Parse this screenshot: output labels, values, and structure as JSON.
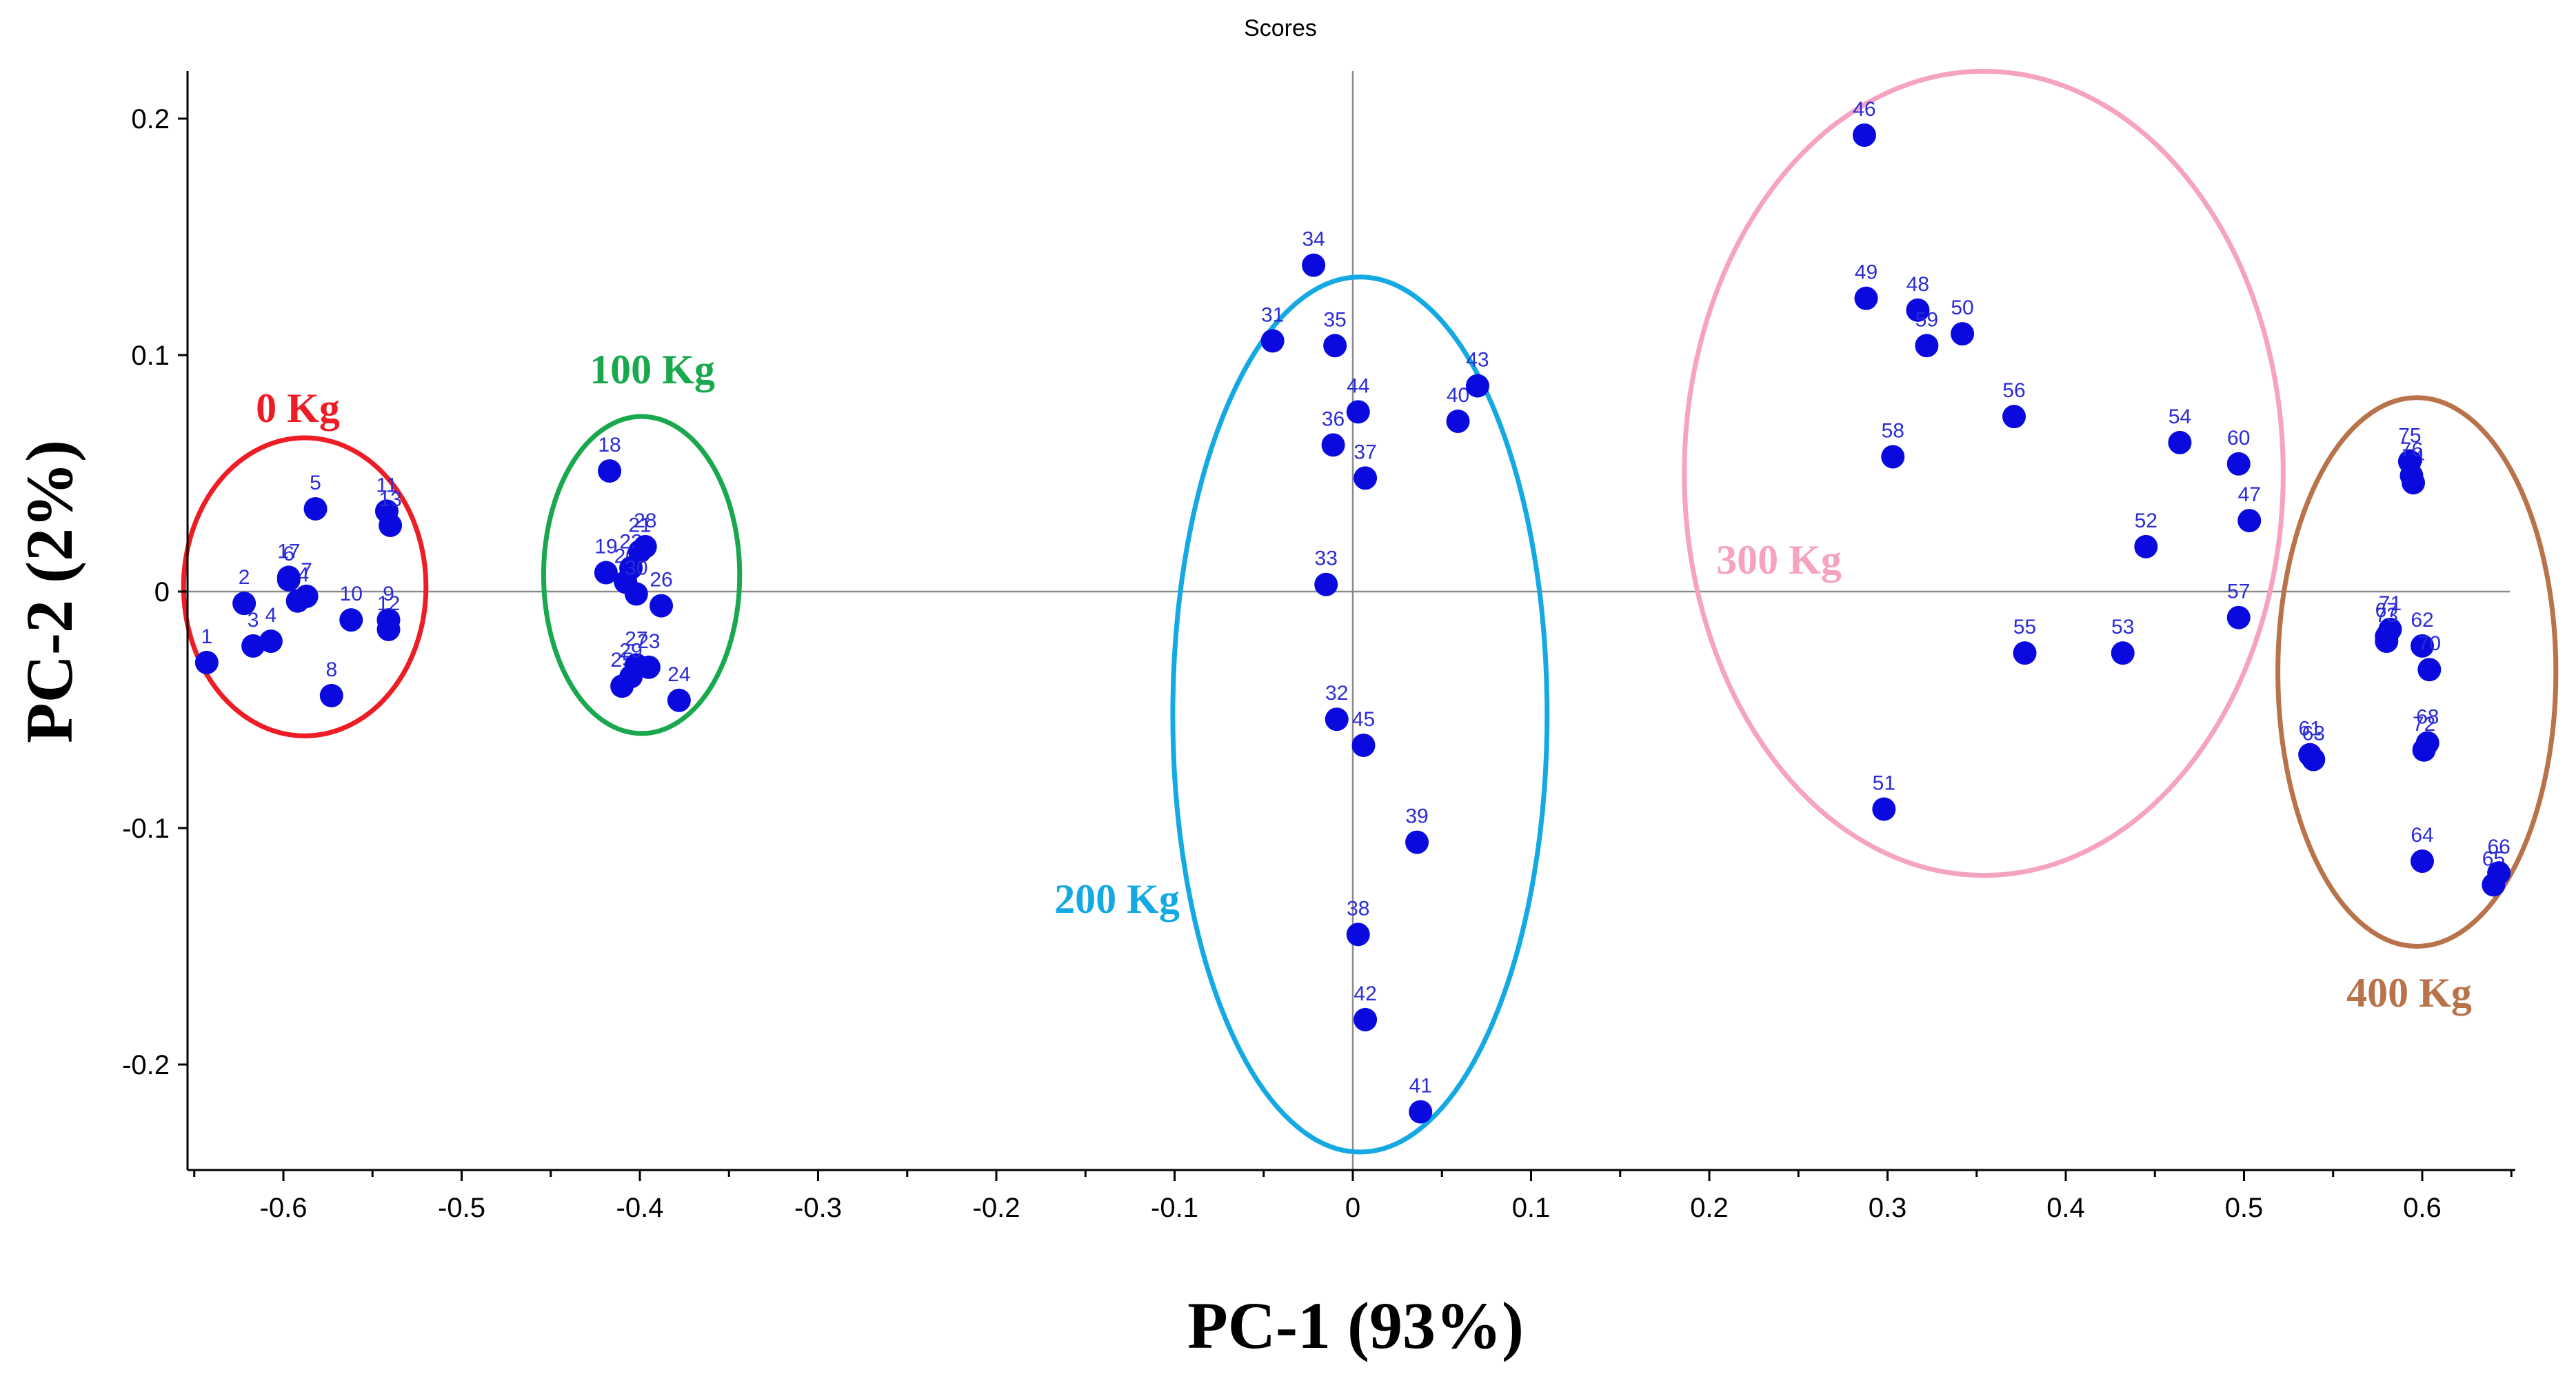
{
  "chart_data": {
    "type": "scatter",
    "title": "Scores",
    "xlabel": "PC-1 (93%)",
    "ylabel": "PC-2 (2%)",
    "xlim": [
      -0.65,
      0.65
    ],
    "ylim": [
      -0.24,
      0.22
    ],
    "xticks": [
      -0.6,
      -0.5,
      -0.4,
      -0.3,
      -0.2,
      -0.1,
      0,
      0.1,
      0.2,
      0.3,
      0.4,
      0.5,
      0.6
    ],
    "xtick_labels": [
      "-0.6",
      "-0.5",
      "-0.4",
      "-0.3",
      "-0.2",
      "-0.1",
      "0",
      "0.1",
      "0.2",
      "0.3",
      "0.4",
      "0.5",
      "0.6"
    ],
    "yticks": [
      0.2,
      0.1,
      0,
      -0.1,
      -0.2
    ],
    "ytick_labels": [
      "0.2",
      "0.1",
      "0",
      "-0.1",
      "-0.2"
    ],
    "grid": false,
    "marker_color": "#0a0adf",
    "label_color": "#2b2bd9",
    "points": [
      {
        "label": "1",
        "x": -0.643,
        "y": -0.03
      },
      {
        "label": "2",
        "x": -0.622,
        "y": -0.005
      },
      {
        "label": "3",
        "x": -0.617,
        "y": -0.023
      },
      {
        "label": "4",
        "x": -0.607,
        "y": -0.021
      },
      {
        "label": "5",
        "x": -0.582,
        "y": 0.035
      },
      {
        "label": "6",
        "x": -0.597,
        "y": 0.005
      },
      {
        "label": "7",
        "x": -0.587,
        "y": -0.002
      },
      {
        "label": "8",
        "x": -0.573,
        "y": -0.044
      },
      {
        "label": "9",
        "x": -0.541,
        "y": -0.012
      },
      {
        "label": "10",
        "x": -0.562,
        "y": -0.012
      },
      {
        "label": "11",
        "x": -0.542,
        "y": 0.034
      },
      {
        "label": "12",
        "x": -0.541,
        "y": -0.016
      },
      {
        "label": "13",
        "x": -0.54,
        "y": 0.028
      },
      {
        "label": "14",
        "x": -0.592,
        "y": -0.004
      },
      {
        "label": "17",
        "x": -0.597,
        "y": 0.006
      },
      {
        "label": "18",
        "x": -0.417,
        "y": 0.051
      },
      {
        "label": "19",
        "x": -0.419,
        "y": 0.008
      },
      {
        "label": "20",
        "x": -0.408,
        "y": 0.004
      },
      {
        "label": "21",
        "x": -0.4,
        "y": 0.017
      },
      {
        "label": "22",
        "x": -0.405,
        "y": 0.01
      },
      {
        "label": "23",
        "x": -0.395,
        "y": -0.032
      },
      {
        "label": "24",
        "x": -0.378,
        "y": -0.046
      },
      {
        "label": "25",
        "x": -0.41,
        "y": -0.04
      },
      {
        "label": "26",
        "x": -0.388,
        "y": -0.006
      },
      {
        "label": "27",
        "x": -0.402,
        "y": -0.031
      },
      {
        "label": "28",
        "x": -0.397,
        "y": 0.019
      },
      {
        "label": "29",
        "x": -0.405,
        "y": -0.036
      },
      {
        "label": "30",
        "x": -0.402,
        "y": -0.001
      },
      {
        "label": "31",
        "x": -0.045,
        "y": 0.106
      },
      {
        "label": "32",
        "x": -0.009,
        "y": -0.054
      },
      {
        "label": "33",
        "x": -0.015,
        "y": 0.003
      },
      {
        "label": "34",
        "x": -0.022,
        "y": 0.138
      },
      {
        "label": "35",
        "x": -0.01,
        "y": 0.104
      },
      {
        "label": "36",
        "x": -0.011,
        "y": 0.062
      },
      {
        "label": "37",
        "x": 0.007,
        "y": 0.048
      },
      {
        "label": "38",
        "x": 0.003,
        "y": -0.145
      },
      {
        "label": "39",
        "x": 0.036,
        "y": -0.106
      },
      {
        "label": "40",
        "x": 0.059,
        "y": 0.072
      },
      {
        "label": "41",
        "x": 0.038,
        "y": -0.22
      },
      {
        "label": "42",
        "x": 0.007,
        "y": -0.181
      },
      {
        "label": "43",
        "x": 0.07,
        "y": 0.087
      },
      {
        "label": "44",
        "x": 0.003,
        "y": 0.076
      },
      {
        "label": "45",
        "x": 0.006,
        "y": -0.065
      },
      {
        "label": "46",
        "x": 0.287,
        "y": 0.193
      },
      {
        "label": "47",
        "x": 0.503,
        "y": 0.03
      },
      {
        "label": "48",
        "x": 0.317,
        "y": 0.119
      },
      {
        "label": "49",
        "x": 0.288,
        "y": 0.124
      },
      {
        "label": "50",
        "x": 0.342,
        "y": 0.109
      },
      {
        "label": "51",
        "x": 0.298,
        "y": -0.092
      },
      {
        "label": "52",
        "x": 0.445,
        "y": 0.019
      },
      {
        "label": "53",
        "x": 0.432,
        "y": -0.026
      },
      {
        "label": "54",
        "x": 0.464,
        "y": 0.063
      },
      {
        "label": "55",
        "x": 0.377,
        "y": -0.026
      },
      {
        "label": "56",
        "x": 0.371,
        "y": 0.074
      },
      {
        "label": "57",
        "x": 0.497,
        "y": -0.011
      },
      {
        "label": "58",
        "x": 0.303,
        "y": 0.057
      },
      {
        "label": "59",
        "x": 0.322,
        "y": 0.104
      },
      {
        "label": "60",
        "x": 0.497,
        "y": 0.054
      },
      {
        "label": "61",
        "x": 0.537,
        "y": -0.069
      },
      {
        "label": "62",
        "x": 0.6,
        "y": -0.023
      },
      {
        "label": "63",
        "x": 0.539,
        "y": -0.071
      },
      {
        "label": "64",
        "x": 0.6,
        "y": -0.114
      },
      {
        "label": "65",
        "x": 0.64,
        "y": -0.124
      },
      {
        "label": "66",
        "x": 0.643,
        "y": -0.119
      },
      {
        "label": "67",
        "x": 0.58,
        "y": -0.019
      },
      {
        "label": "68",
        "x": 0.603,
        "y": -0.064
      },
      {
        "label": "70",
        "x": 0.604,
        "y": -0.033
      },
      {
        "label": "71",
        "x": 0.582,
        "y": -0.016
      },
      {
        "label": "72",
        "x": 0.601,
        "y": -0.067
      },
      {
        "label": "73",
        "x": 0.58,
        "y": -0.021
      },
      {
        "label": "74",
        "x": 0.595,
        "y": 0.046
      },
      {
        "label": "75",
        "x": 0.593,
        "y": 0.055
      },
      {
        "label": "76",
        "x": 0.594,
        "y": 0.049
      }
    ],
    "annotations": [
      {
        "text": "0 Kg",
        "color": "#ee1c25"
      },
      {
        "text": "100 Kg",
        "color": "#1aa84e"
      },
      {
        "text": "200 Kg",
        "color": "#14a9e3"
      },
      {
        "text": "300 Kg",
        "color": "#f5a3c1"
      },
      {
        "text": "400 Kg",
        "color": "#b9734a"
      }
    ],
    "groups": [
      {
        "name": "0 Kg",
        "color": "#ee1c25",
        "center": [
          -0.588,
          0.002
        ],
        "radius": [
          0.068,
          0.063
        ]
      },
      {
        "name": "100 Kg",
        "color": "#1aa84e",
        "center": [
          -0.399,
          0.007
        ],
        "radius": [
          0.055,
          0.067
        ]
      },
      {
        "name": "200 Kg",
        "color": "#14a9e3",
        "center": [
          0.004,
          -0.052
        ],
        "radius": [
          0.105,
          0.185
        ]
      },
      {
        "name": "300 Kg",
        "color": "#f5a3c1",
        "center": [
          0.354,
          0.05
        ],
        "radius": [
          0.168,
          0.17
        ]
      },
      {
        "name": "400 Kg",
        "color": "#b9734a",
        "center": [
          0.597,
          -0.034
        ],
        "radius": [
          0.078,
          0.116
        ]
      }
    ]
  }
}
